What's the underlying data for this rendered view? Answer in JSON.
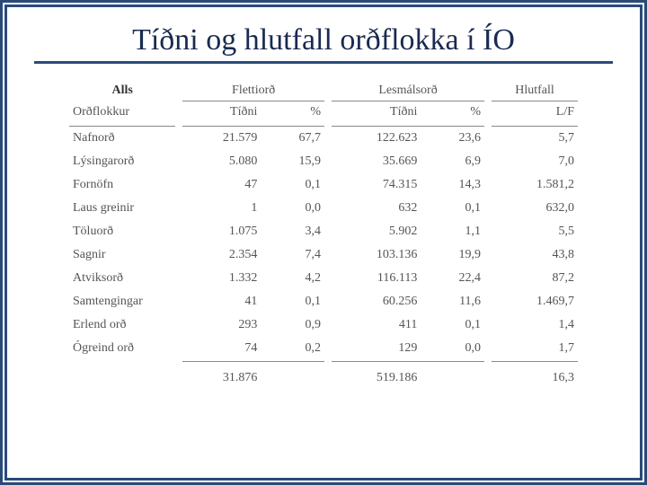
{
  "title": "Tíðni og hlutfall orðflokka í ÍO",
  "table": {
    "group_headers": {
      "alls": "Alls",
      "flettiord": "Flettiorð",
      "lesmalsord": "Lesmálsorð",
      "hlutfall": "Hlutfall"
    },
    "sub_headers": {
      "ordflokkur": "Orðflokkur",
      "tidni": "Tíðni",
      "pct": "%",
      "lf": "L/F"
    },
    "rows": [
      {
        "label": "Nafnorð",
        "f_tidni": "21.579",
        "f_pct": "67,7",
        "l_tidni": "122.623",
        "l_pct": "23,6",
        "lf": "5,7"
      },
      {
        "label": "Lýsingarorð",
        "f_tidni": "5.080",
        "f_pct": "15,9",
        "l_tidni": "35.669",
        "l_pct": "6,9",
        "lf": "7,0"
      },
      {
        "label": "Fornöfn",
        "f_tidni": "47",
        "f_pct": "0,1",
        "l_tidni": "74.315",
        "l_pct": "14,3",
        "lf": "1.581,2"
      },
      {
        "label": "Laus greinir",
        "f_tidni": "1",
        "f_pct": "0,0",
        "l_tidni": "632",
        "l_pct": "0,1",
        "lf": "632,0"
      },
      {
        "label": "Töluorð",
        "f_tidni": "1.075",
        "f_pct": "3,4",
        "l_tidni": "5.902",
        "l_pct": "1,1",
        "lf": "5,5"
      },
      {
        "label": "Sagnir",
        "f_tidni": "2.354",
        "f_pct": "7,4",
        "l_tidni": "103.136",
        "l_pct": "19,9",
        "lf": "43,8"
      },
      {
        "label": "Atviksorð",
        "f_tidni": "1.332",
        "f_pct": "4,2",
        "l_tidni": "116.113",
        "l_pct": "22,4",
        "lf": "87,2"
      },
      {
        "label": "Samtengingar",
        "f_tidni": "41",
        "f_pct": "0,1",
        "l_tidni": "60.256",
        "l_pct": "11,6",
        "lf": "1.469,7"
      },
      {
        "label": "Erlend orð",
        "f_tidni": "293",
        "f_pct": "0,9",
        "l_tidni": "411",
        "l_pct": "0,1",
        "lf": "1,4"
      },
      {
        "label": "Ógreind orð",
        "f_tidni": "74",
        "f_pct": "0,2",
        "l_tidni": "129",
        "l_pct": "0,0",
        "lf": "1,7"
      }
    ],
    "totals": {
      "f_tidni": "31.876",
      "l_tidni": "519.186",
      "lf": "16,3"
    }
  },
  "colors": {
    "frame": "#2a4a7a",
    "title": "#1a2a50",
    "text": "#555555",
    "rule": "#888888",
    "background": "#ffffff"
  },
  "typography": {
    "title_fontsize": 34,
    "table_fontsize": 14,
    "font_family": "Georgia, Times New Roman, serif"
  }
}
